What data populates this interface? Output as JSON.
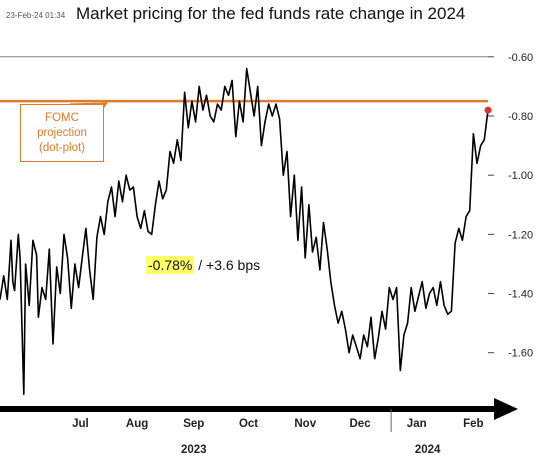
{
  "timestamp": "23-Feb-24 01:34",
  "title": "Market pricing for the fed funds rate change in 2024",
  "annotation": {
    "value_highlight": "-0.78%",
    "separator": " / ",
    "change": "+3.6 bps"
  },
  "fomc_label": {
    "line1": "FOMC",
    "line2": "projection",
    "line3": "(dot-plot)"
  },
  "colors": {
    "series": "#000000",
    "fomc_line": "#e07b2a",
    "last_point": "#e0302a",
    "highlight": "#ffff66",
    "top_rule": "#888888"
  },
  "chart_data": {
    "type": "line",
    "title": "Market pricing for the fed funds rate change in 2024",
    "xlabel": "",
    "ylabel": "",
    "y_axis_side": "right",
    "y_ticks": [
      -0.6,
      -0.8,
      -1.0,
      -1.2,
      -1.4,
      -1.6
    ],
    "y_tick_labels": [
      "-0.60",
      "-0.80",
      "-1.00",
      "-1.20",
      "-1.40",
      "-1.60"
    ],
    "ylim": [
      -1.78,
      -0.55
    ],
    "x_range": [
      "2023-06-01",
      "2024-02-23"
    ],
    "month_labels": [
      "Jul",
      "Aug",
      "Sep",
      "Oct",
      "Nov",
      "Dec",
      "Jan",
      "Feb"
    ],
    "month_dates": [
      "2023-07-15",
      "2023-08-15",
      "2023-09-15",
      "2023-10-15",
      "2023-11-15",
      "2023-12-15",
      "2024-01-15",
      "2024-02-15"
    ],
    "year_labels": [
      "2023",
      "2024"
    ],
    "year_dates": [
      "2023-09-15",
      "2024-01-21"
    ],
    "year_divider": "2024-01-01",
    "reference_line": {
      "name": "FOMC projection (dot-plot)",
      "value": -0.75
    },
    "grid": false,
    "series": [
      {
        "x": [
          "2023-06-01",
          "2023-06-03",
          "2023-06-05",
          "2023-06-07",
          "2023-06-08",
          "2023-06-09",
          "2023-06-11",
          "2023-06-12",
          "2023-06-14",
          "2023-06-15",
          "2023-06-17",
          "2023-06-19",
          "2023-06-21",
          "2023-06-22",
          "2023-06-24",
          "2023-06-26",
          "2023-06-28",
          "2023-06-30",
          "2023-07-02",
          "2023-07-04",
          "2023-07-06",
          "2023-07-08",
          "2023-07-10",
          "2023-07-12",
          "2023-07-14",
          "2023-07-16",
          "2023-07-18",
          "2023-07-20",
          "2023-07-22",
          "2023-07-24",
          "2023-07-26",
          "2023-07-28",
          "2023-07-30",
          "2023-08-01",
          "2023-08-03",
          "2023-08-05",
          "2023-08-07",
          "2023-08-09",
          "2023-08-11",
          "2023-08-13",
          "2023-08-15",
          "2023-08-17",
          "2023-08-19",
          "2023-08-21",
          "2023-08-23",
          "2023-08-25",
          "2023-08-27",
          "2023-08-29",
          "2023-08-31",
          "2023-09-02",
          "2023-09-04",
          "2023-09-06",
          "2023-09-08",
          "2023-09-10",
          "2023-09-12",
          "2023-09-14",
          "2023-09-16",
          "2023-09-18",
          "2023-09-20",
          "2023-09-22",
          "2023-09-24",
          "2023-09-26",
          "2023-09-28",
          "2023-09-30",
          "2023-10-02",
          "2023-10-04",
          "2023-10-06",
          "2023-10-08",
          "2023-10-10",
          "2023-10-12",
          "2023-10-14",
          "2023-10-16",
          "2023-10-18",
          "2023-10-20",
          "2023-10-22",
          "2023-10-24",
          "2023-10-26",
          "2023-10-28",
          "2023-10-30",
          "2023-11-01",
          "2023-11-03",
          "2023-11-05",
          "2023-11-07",
          "2023-11-09",
          "2023-11-11",
          "2023-11-13",
          "2023-11-15",
          "2023-11-17",
          "2023-11-19",
          "2023-11-21",
          "2023-11-23",
          "2023-11-25",
          "2023-11-27",
          "2023-11-29",
          "2023-12-01",
          "2023-12-03",
          "2023-12-05",
          "2023-12-07",
          "2023-12-09",
          "2023-12-11",
          "2023-12-13",
          "2023-12-15",
          "2023-12-17",
          "2023-12-19",
          "2023-12-21",
          "2023-12-23",
          "2023-12-25",
          "2023-12-27",
          "2023-12-29",
          "2023-12-31",
          "2024-01-02",
          "2024-01-04",
          "2024-01-06",
          "2024-01-08",
          "2024-01-10",
          "2024-01-12",
          "2024-01-14",
          "2024-01-16",
          "2024-01-18",
          "2024-01-20",
          "2024-01-22",
          "2024-01-24",
          "2024-01-26",
          "2024-01-28",
          "2024-01-30",
          "2024-02-01",
          "2024-02-03",
          "2024-02-05",
          "2024-02-07",
          "2024-02-09",
          "2024-02-11",
          "2024-02-13",
          "2024-02-15",
          "2024-02-17",
          "2024-02-19",
          "2024-02-21",
          "2024-02-23"
        ],
        "y": [
          -1.42,
          -1.34,
          -1.42,
          -1.22,
          -1.36,
          -1.39,
          -1.2,
          -1.28,
          -1.74,
          -1.3,
          -1.44,
          -1.22,
          -1.27,
          -1.48,
          -1.38,
          -1.42,
          -1.25,
          -1.57,
          -1.31,
          -1.4,
          -1.2,
          -1.28,
          -1.45,
          -1.3,
          -1.38,
          -1.28,
          -1.18,
          -1.32,
          -1.42,
          -1.21,
          -1.14,
          -1.2,
          -1.09,
          -1.04,
          -1.14,
          -1.02,
          -1.09,
          -1.0,
          -1.05,
          -1.04,
          -1.14,
          -1.18,
          -1.12,
          -1.19,
          -1.2,
          -1.1,
          -1.02,
          -1.08,
          -1.05,
          -0.92,
          -0.96,
          -0.88,
          -0.95,
          -0.72,
          -0.84,
          -0.75,
          -0.82,
          -0.7,
          -0.78,
          -0.73,
          -0.8,
          -0.82,
          -0.76,
          -0.78,
          -0.7,
          -0.73,
          -0.68,
          -0.87,
          -0.75,
          -0.82,
          -0.64,
          -0.72,
          -0.8,
          -0.7,
          -0.9,
          -0.82,
          -0.76,
          -0.8,
          -0.76,
          -0.81,
          -1.0,
          -0.92,
          -1.14,
          -1.0,
          -1.22,
          -1.04,
          -1.28,
          -1.1,
          -1.26,
          -1.21,
          -1.32,
          -1.16,
          -1.25,
          -1.36,
          -1.44,
          -1.5,
          -1.46,
          -1.52,
          -1.6,
          -1.54,
          -1.58,
          -1.62,
          -1.54,
          -1.58,
          -1.48,
          -1.62,
          -1.55,
          -1.46,
          -1.52,
          -1.38,
          -1.42,
          -1.38,
          -1.66,
          -1.54,
          -1.5,
          -1.38,
          -1.46,
          -1.41,
          -1.36,
          -1.45,
          -1.4,
          -1.38,
          -1.44,
          -1.36,
          -1.44,
          -1.47,
          -1.46,
          -1.23,
          -1.18,
          -1.22,
          -1.14,
          -1.12,
          -0.86,
          -0.96,
          -0.9,
          -0.88,
          -0.78
        ]
      }
    ]
  }
}
